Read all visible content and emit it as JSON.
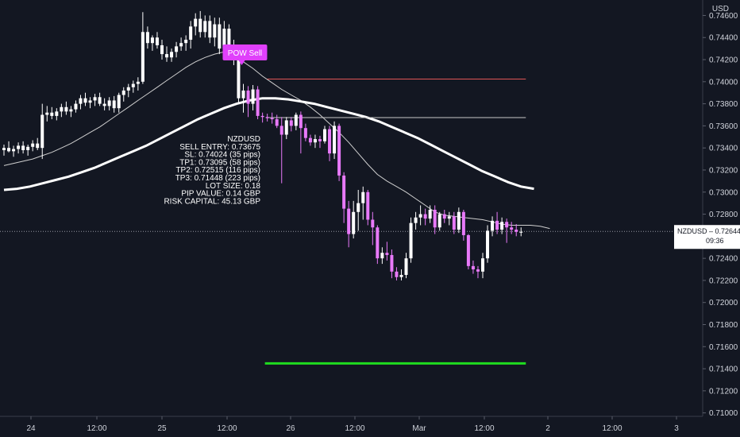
{
  "currency_label": "USD",
  "symbol_badge": "NZDUSD – 0.72644",
  "countdown": "09:36",
  "signal_label": "POW Sell",
  "trade_info": [
    "NZDUSD",
    "SELL ENTRY: 0.73675",
    "SL: 0.74024 (35 pips)",
    "TP1: 0.73095 (58 pips)",
    "TP2: 0.72515 (116 pips)",
    "TP3: 0.71448 (223 pips)",
    "LOT SIZE: 0.18",
    "PIP VALUE: 0.14 GBP",
    "RISK CAPITAL: 45.13 GBP"
  ],
  "colors": {
    "background": "#131722",
    "up_candle": "#ffffff",
    "down_candle_pre_signal": "#ffffff",
    "down_candle_post_signal": "#e879f9",
    "sl_line": "#e05555",
    "entry_line": "#c8c8c8",
    "tp3_line": "#1fdc1f",
    "signal": "#e040fb",
    "ma_fast": "#cfcfcf",
    "ma_slow": "#ffffff"
  },
  "chart_data": {
    "type": "candlestick",
    "symbol": "NZDUSD",
    "y_ticks": [
      "0.74600",
      "0.74400",
      "0.74200",
      "0.74000",
      "0.73800",
      "0.73600",
      "0.73400",
      "0.73200",
      "0.73000",
      "0.72800",
      "0.72600",
      "0.72400",
      "0.72200",
      "0.72000",
      "0.71800",
      "0.71600",
      "0.71400",
      "0.71200",
      "0.71000"
    ],
    "ylim": [
      0.7094,
      0.7474
    ],
    "x_ticks": [
      "24",
      "12:00",
      "25",
      "12:00",
      "26",
      "12:00",
      "Mar",
      "12:00",
      "2",
      "12:00",
      "3"
    ],
    "last_price": 0.72644,
    "levels": {
      "stop_loss": 0.74024,
      "sell_entry": 0.73675,
      "tp3": 0.71448
    },
    "candles": [
      {
        "o": 0.7338,
        "h": 0.7343,
        "l": 0.7333,
        "c": 0.734
      },
      {
        "o": 0.734,
        "h": 0.7346,
        "l": 0.7336,
        "c": 0.7337
      },
      {
        "o": 0.7337,
        "h": 0.7342,
        "l": 0.7332,
        "c": 0.7339
      },
      {
        "o": 0.7339,
        "h": 0.7345,
        "l": 0.7335,
        "c": 0.7342
      },
      {
        "o": 0.7342,
        "h": 0.7346,
        "l": 0.7335,
        "c": 0.7338
      },
      {
        "o": 0.7338,
        "h": 0.7343,
        "l": 0.7333,
        "c": 0.7341
      },
      {
        "o": 0.7341,
        "h": 0.7347,
        "l": 0.7337,
        "c": 0.7344
      },
      {
        "o": 0.7344,
        "h": 0.7349,
        "l": 0.7338,
        "c": 0.734
      },
      {
        "o": 0.734,
        "h": 0.738,
        "l": 0.733,
        "c": 0.737
      },
      {
        "o": 0.737,
        "h": 0.7378,
        "l": 0.7364,
        "c": 0.7372
      },
      {
        "o": 0.7372,
        "h": 0.7377,
        "l": 0.7366,
        "c": 0.7369
      },
      {
        "o": 0.7369,
        "h": 0.7376,
        "l": 0.7365,
        "c": 0.7373
      },
      {
        "o": 0.7373,
        "h": 0.738,
        "l": 0.7368,
        "c": 0.7377
      },
      {
        "o": 0.7377,
        "h": 0.7382,
        "l": 0.737,
        "c": 0.7373
      },
      {
        "o": 0.7373,
        "h": 0.7378,
        "l": 0.7368,
        "c": 0.7375
      },
      {
        "o": 0.7375,
        "h": 0.7383,
        "l": 0.7372,
        "c": 0.738
      },
      {
        "o": 0.738,
        "h": 0.7388,
        "l": 0.7375,
        "c": 0.7385
      },
      {
        "o": 0.7385,
        "h": 0.739,
        "l": 0.7378,
        "c": 0.7381
      },
      {
        "o": 0.7381,
        "h": 0.7386,
        "l": 0.7376,
        "c": 0.7383
      },
      {
        "o": 0.7383,
        "h": 0.7389,
        "l": 0.7378,
        "c": 0.7386
      },
      {
        "o": 0.7386,
        "h": 0.739,
        "l": 0.7378,
        "c": 0.738
      },
      {
        "o": 0.738,
        "h": 0.7385,
        "l": 0.7374,
        "c": 0.7378
      },
      {
        "o": 0.7378,
        "h": 0.7386,
        "l": 0.7374,
        "c": 0.7383
      },
      {
        "o": 0.7383,
        "h": 0.7387,
        "l": 0.7372,
        "c": 0.7376
      },
      {
        "o": 0.7376,
        "h": 0.739,
        "l": 0.7372,
        "c": 0.7388
      },
      {
        "o": 0.7388,
        "h": 0.7395,
        "l": 0.7382,
        "c": 0.7392
      },
      {
        "o": 0.7392,
        "h": 0.7398,
        "l": 0.7386,
        "c": 0.7395
      },
      {
        "o": 0.7395,
        "h": 0.7401,
        "l": 0.739,
        "c": 0.7398
      },
      {
        "o": 0.7398,
        "h": 0.7404,
        "l": 0.7392,
        "c": 0.74
      },
      {
        "o": 0.74,
        "h": 0.7463,
        "l": 0.7398,
        "c": 0.7445
      },
      {
        "o": 0.7445,
        "h": 0.745,
        "l": 0.743,
        "c": 0.7435
      },
      {
        "o": 0.7435,
        "h": 0.7442,
        "l": 0.7428,
        "c": 0.744
      },
      {
        "o": 0.744,
        "h": 0.7445,
        "l": 0.743,
        "c": 0.7433
      },
      {
        "o": 0.7433,
        "h": 0.7438,
        "l": 0.742,
        "c": 0.7425
      },
      {
        "o": 0.7425,
        "h": 0.7432,
        "l": 0.7418,
        "c": 0.7422
      },
      {
        "o": 0.7422,
        "h": 0.743,
        "l": 0.7418,
        "c": 0.7427
      },
      {
        "o": 0.7427,
        "h": 0.7436,
        "l": 0.7422,
        "c": 0.7432
      },
      {
        "o": 0.7432,
        "h": 0.744,
        "l": 0.7428,
        "c": 0.7435
      },
      {
        "o": 0.7435,
        "h": 0.7442,
        "l": 0.7428,
        "c": 0.7438
      },
      {
        "o": 0.7438,
        "h": 0.7455,
        "l": 0.743,
        "c": 0.745
      },
      {
        "o": 0.745,
        "h": 0.7462,
        "l": 0.7442,
        "c": 0.7457
      },
      {
        "o": 0.7457,
        "h": 0.7464,
        "l": 0.744,
        "c": 0.7445
      },
      {
        "o": 0.7445,
        "h": 0.746,
        "l": 0.744,
        "c": 0.7455
      },
      {
        "o": 0.7455,
        "h": 0.746,
        "l": 0.7435,
        "c": 0.744
      },
      {
        "o": 0.744,
        "h": 0.7458,
        "l": 0.7432,
        "c": 0.7452
      },
      {
        "o": 0.7452,
        "h": 0.7458,
        "l": 0.7425,
        "c": 0.743
      },
      {
        "o": 0.743,
        "h": 0.7455,
        "l": 0.7425,
        "c": 0.7448
      },
      {
        "o": 0.7448,
        "h": 0.7452,
        "l": 0.7428,
        "c": 0.7432
      },
      {
        "o": 0.7432,
        "h": 0.7438,
        "l": 0.7415,
        "c": 0.7425
      },
      {
        "o": 0.7425,
        "h": 0.743,
        "l": 0.738,
        "c": 0.7385
      },
      {
        "o": 0.7385,
        "h": 0.7398,
        "l": 0.7372,
        "c": 0.7392
      },
      {
        "o": 0.7392,
        "h": 0.7396,
        "l": 0.7368,
        "c": 0.738
      },
      {
        "o": 0.738,
        "h": 0.7397,
        "l": 0.7374,
        "c": 0.7393
      },
      {
        "o": 0.7393,
        "h": 0.7396,
        "l": 0.7366,
        "c": 0.7369
      },
      {
        "o": 0.7369,
        "h": 0.7372,
        "l": 0.7363,
        "c": 0.7368
      },
      {
        "o": 0.7368,
        "h": 0.7371,
        "l": 0.7364,
        "c": 0.7367
      },
      {
        "o": 0.7367,
        "h": 0.7372,
        "l": 0.7362,
        "c": 0.7366
      },
      {
        "o": 0.7366,
        "h": 0.737,
        "l": 0.7358,
        "c": 0.736
      },
      {
        "o": 0.736,
        "h": 0.7368,
        "l": 0.7308,
        "c": 0.7352
      },
      {
        "o": 0.7352,
        "h": 0.7368,
        "l": 0.7348,
        "c": 0.7365
      },
      {
        "o": 0.7365,
        "h": 0.7368,
        "l": 0.7355,
        "c": 0.736
      },
      {
        "o": 0.736,
        "h": 0.7372,
        "l": 0.7356,
        "c": 0.737
      },
      {
        "o": 0.737,
        "h": 0.7373,
        "l": 0.7335,
        "c": 0.7358
      },
      {
        "o": 0.7358,
        "h": 0.7362,
        "l": 0.7346,
        "c": 0.7349
      },
      {
        "o": 0.7349,
        "h": 0.7352,
        "l": 0.7342,
        "c": 0.7345
      },
      {
        "o": 0.7345,
        "h": 0.7352,
        "l": 0.734,
        "c": 0.7348
      },
      {
        "o": 0.7348,
        "h": 0.7351,
        "l": 0.734,
        "c": 0.7346
      },
      {
        "o": 0.7346,
        "h": 0.736,
        "l": 0.7344,
        "c": 0.7357
      },
      {
        "o": 0.7357,
        "h": 0.736,
        "l": 0.7328,
        "c": 0.7335
      },
      {
        "o": 0.7335,
        "h": 0.7364,
        "l": 0.733,
        "c": 0.736
      },
      {
        "o": 0.736,
        "h": 0.7362,
        "l": 0.731,
        "c": 0.7315
      },
      {
        "o": 0.7315,
        "h": 0.7318,
        "l": 0.7272,
        "c": 0.7285
      },
      {
        "o": 0.7285,
        "h": 0.7292,
        "l": 0.725,
        "c": 0.7262
      },
      {
        "o": 0.7262,
        "h": 0.7292,
        "l": 0.7258,
        "c": 0.7282
      },
      {
        "o": 0.7282,
        "h": 0.7302,
        "l": 0.7265,
        "c": 0.729
      },
      {
        "o": 0.729,
        "h": 0.7305,
        "l": 0.7275,
        "c": 0.73
      },
      {
        "o": 0.73,
        "h": 0.7302,
        "l": 0.727,
        "c": 0.7275
      },
      {
        "o": 0.7275,
        "h": 0.7282,
        "l": 0.7252,
        "c": 0.7268
      },
      {
        "o": 0.7268,
        "h": 0.727,
        "l": 0.7235,
        "c": 0.724
      },
      {
        "o": 0.724,
        "h": 0.725,
        "l": 0.7235,
        "c": 0.7245
      },
      {
        "o": 0.7245,
        "h": 0.7255,
        "l": 0.7238,
        "c": 0.7243
      },
      {
        "o": 0.7243,
        "h": 0.7248,
        "l": 0.7222,
        "c": 0.7228
      },
      {
        "o": 0.7228,
        "h": 0.7232,
        "l": 0.722,
        "c": 0.7223
      },
      {
        "o": 0.7223,
        "h": 0.723,
        "l": 0.722,
        "c": 0.7225
      },
      {
        "o": 0.7225,
        "h": 0.7245,
        "l": 0.7222,
        "c": 0.724
      },
      {
        "o": 0.724,
        "h": 0.7277,
        "l": 0.7236,
        "c": 0.7272
      },
      {
        "o": 0.7272,
        "h": 0.7282,
        "l": 0.7266,
        "c": 0.7277
      },
      {
        "o": 0.7277,
        "h": 0.7288,
        "l": 0.727,
        "c": 0.728
      },
      {
        "o": 0.728,
        "h": 0.7285,
        "l": 0.727,
        "c": 0.7276
      },
      {
        "o": 0.7276,
        "h": 0.7288,
        "l": 0.7272,
        "c": 0.7284
      },
      {
        "o": 0.7284,
        "h": 0.7288,
        "l": 0.7262,
        "c": 0.7268
      },
      {
        "o": 0.7268,
        "h": 0.7282,
        "l": 0.7265,
        "c": 0.728
      },
      {
        "o": 0.728,
        "h": 0.7284,
        "l": 0.7272,
        "c": 0.7276
      },
      {
        "o": 0.7276,
        "h": 0.7282,
        "l": 0.727,
        "c": 0.7278
      },
      {
        "o": 0.7278,
        "h": 0.7282,
        "l": 0.7262,
        "c": 0.7266
      },
      {
        "o": 0.7266,
        "h": 0.7286,
        "l": 0.7263,
        "c": 0.7282
      },
      {
        "o": 0.7282,
        "h": 0.7284,
        "l": 0.7256,
        "c": 0.7261
      },
      {
        "o": 0.7261,
        "h": 0.7262,
        "l": 0.723,
        "c": 0.7233
      },
      {
        "o": 0.7233,
        "h": 0.7238,
        "l": 0.7226,
        "c": 0.723
      },
      {
        "o": 0.723,
        "h": 0.7233,
        "l": 0.7222,
        "c": 0.7228
      },
      {
        "o": 0.7228,
        "h": 0.7245,
        "l": 0.7222,
        "c": 0.724
      },
      {
        "o": 0.724,
        "h": 0.727,
        "l": 0.7236,
        "c": 0.7265
      },
      {
        "o": 0.7265,
        "h": 0.7278,
        "l": 0.726,
        "c": 0.7274
      },
      {
        "o": 0.7274,
        "h": 0.7282,
        "l": 0.7262,
        "c": 0.7266
      },
      {
        "o": 0.7266,
        "h": 0.7277,
        "l": 0.7262,
        "c": 0.7273
      },
      {
        "o": 0.7273,
        "h": 0.7276,
        "l": 0.7254,
        "c": 0.7268
      },
      {
        "o": 0.7268,
        "h": 0.7273,
        "l": 0.7262,
        "c": 0.7266
      },
      {
        "o": 0.7266,
        "h": 0.7271,
        "l": 0.726,
        "c": 0.7264
      },
      {
        "o": 0.7264,
        "h": 0.7268,
        "l": 0.726,
        "c": 0.7264
      }
    ],
    "ma_fast": [
      0.7324,
      0.7326,
      0.7328,
      0.733,
      0.7333,
      0.7336,
      0.734,
      0.7344,
      0.7349,
      0.7354,
      0.7359,
      0.7365,
      0.7371,
      0.7377,
      0.7383,
      0.7389,
      0.7395,
      0.7401,
      0.7407,
      0.7413,
      0.7418,
      0.7422,
      0.7425,
      0.7427,
      0.7424,
      0.7418,
      0.7412,
      0.7405,
      0.7399,
      0.7393,
      0.7388,
      0.7383,
      0.7377,
      0.737,
      0.7362,
      0.7354,
      0.7345,
      0.7335,
      0.7325,
      0.7316,
      0.731,
      0.7305,
      0.73,
      0.7294,
      0.7288,
      0.7282,
      0.7279,
      0.7278,
      0.7277,
      0.7276,
      0.7275,
      0.7273,
      0.7271,
      0.727,
      0.727,
      0.727,
      0.7269,
      0.7267
    ],
    "ma_slow": [
      0.7302,
      0.7303,
      0.7305,
      0.7308,
      0.7311,
      0.7314,
      0.7318,
      0.7322,
      0.7327,
      0.7332,
      0.7337,
      0.7342,
      0.7348,
      0.7354,
      0.736,
      0.7366,
      0.7371,
      0.7376,
      0.738,
      0.7383,
      0.7385,
      0.7385,
      0.7384,
      0.7382,
      0.738,
      0.7377,
      0.7374,
      0.7371,
      0.7368,
      0.7364,
      0.7359,
      0.7354,
      0.7349,
      0.7343,
      0.7337,
      0.7331,
      0.7325,
      0.7319,
      0.7314,
      0.7309,
      0.7305,
      0.7303
    ]
  }
}
